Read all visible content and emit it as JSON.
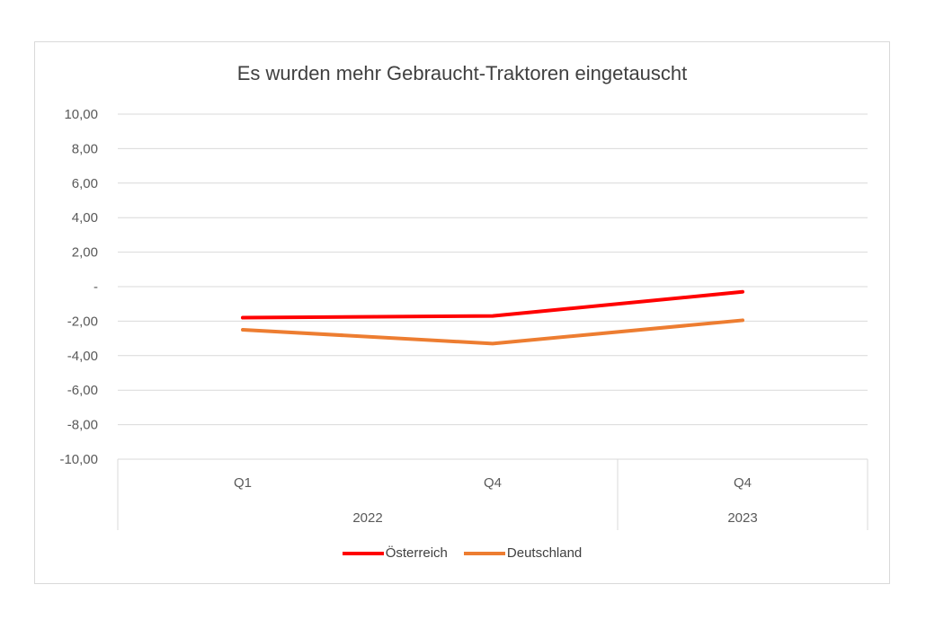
{
  "chart_data": {
    "type": "line",
    "title": "Es wurden mehr Gebraucht-Traktoren eingetauscht",
    "xlabel": "",
    "ylabel": "",
    "ylim": [
      -10,
      10
    ],
    "y_ticks": [
      "10,00",
      "8,00",
      "6,00",
      "4,00",
      "2,00",
      "-",
      "-2,00",
      "-4,00",
      "-6,00",
      "-8,00",
      "-10,00"
    ],
    "y_tick_values": [
      10,
      8,
      6,
      4,
      2,
      0,
      -2,
      -4,
      -6,
      -8,
      -10
    ],
    "categories": [
      "Q1",
      "Q4",
      "Q4"
    ],
    "category_groups": [
      {
        "label": "2022",
        "span": 2
      },
      {
        "label": "2023",
        "span": 1
      }
    ],
    "series": [
      {
        "name": "Österreich",
        "values": [
          -1.8,
          -1.7,
          -0.3
        ],
        "color": "#ff0000"
      },
      {
        "name": "Deutschland",
        "values": [
          -2.5,
          -3.3,
          -1.95
        ],
        "color": "#ed7d31"
      }
    ],
    "grid": true,
    "legend_position": "bottom"
  }
}
